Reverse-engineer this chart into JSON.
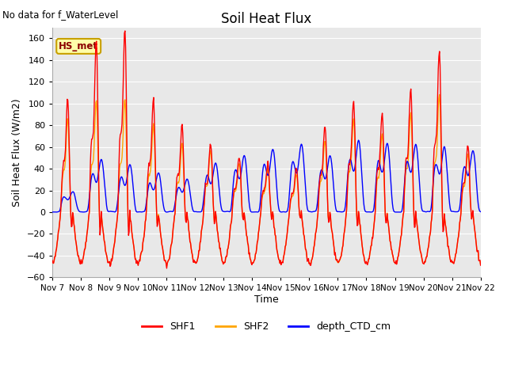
{
  "title": "Soil Heat Flux",
  "xlabel": "Time",
  "ylabel": "Soil Heat Flux (W/m2)",
  "ylim": [
    -60,
    170
  ],
  "yticks": [
    -60,
    -40,
    -20,
    0,
    20,
    40,
    60,
    80,
    100,
    120,
    140,
    160
  ],
  "plot_bg_color": "#e8e8e8",
  "fig_bg_color": "#ffffff",
  "no_data_text": "No data for f_WaterLevel",
  "station_label": "HS_met",
  "legend_entries": [
    "SHF1",
    "SHF2",
    "depth_CTD_cm"
  ],
  "shf1_color": "#ff0000",
  "shf2_color": "#ffa500",
  "depth_color": "#0000ff",
  "line_width": 1.0,
  "n_days": 15,
  "n_per_day": 48,
  "x_tick_labels": [
    "Nov 7",
    "Nov 8",
    "Nov 9",
    "Nov 10",
    "Nov 11",
    "Nov 12",
    "Nov 13",
    "Nov 14",
    "Nov 15",
    "Nov 16",
    "Nov 17",
    "Nov 18",
    "Nov 19",
    "Nov 20",
    "Nov 21",
    "Nov 22"
  ],
  "shf1_day_amps": [
    90,
    138,
    145,
    90,
    70,
    55,
    45,
    40,
    35,
    70,
    89,
    78,
    99,
    130,
    55
  ],
  "shf2_day_amps": [
    75,
    90,
    90,
    70,
    55,
    50,
    40,
    35,
    30,
    58,
    75,
    62,
    80,
    95,
    48
  ],
  "depth_day_amps": [
    27,
    68,
    61,
    51,
    44,
    64,
    73,
    82,
    88,
    73,
    92,
    89,
    88,
    84,
    80
  ],
  "shf_night_amp": 47,
  "shf1_phase_shift": 0.0,
  "shf2_phase_shift": 0.5
}
